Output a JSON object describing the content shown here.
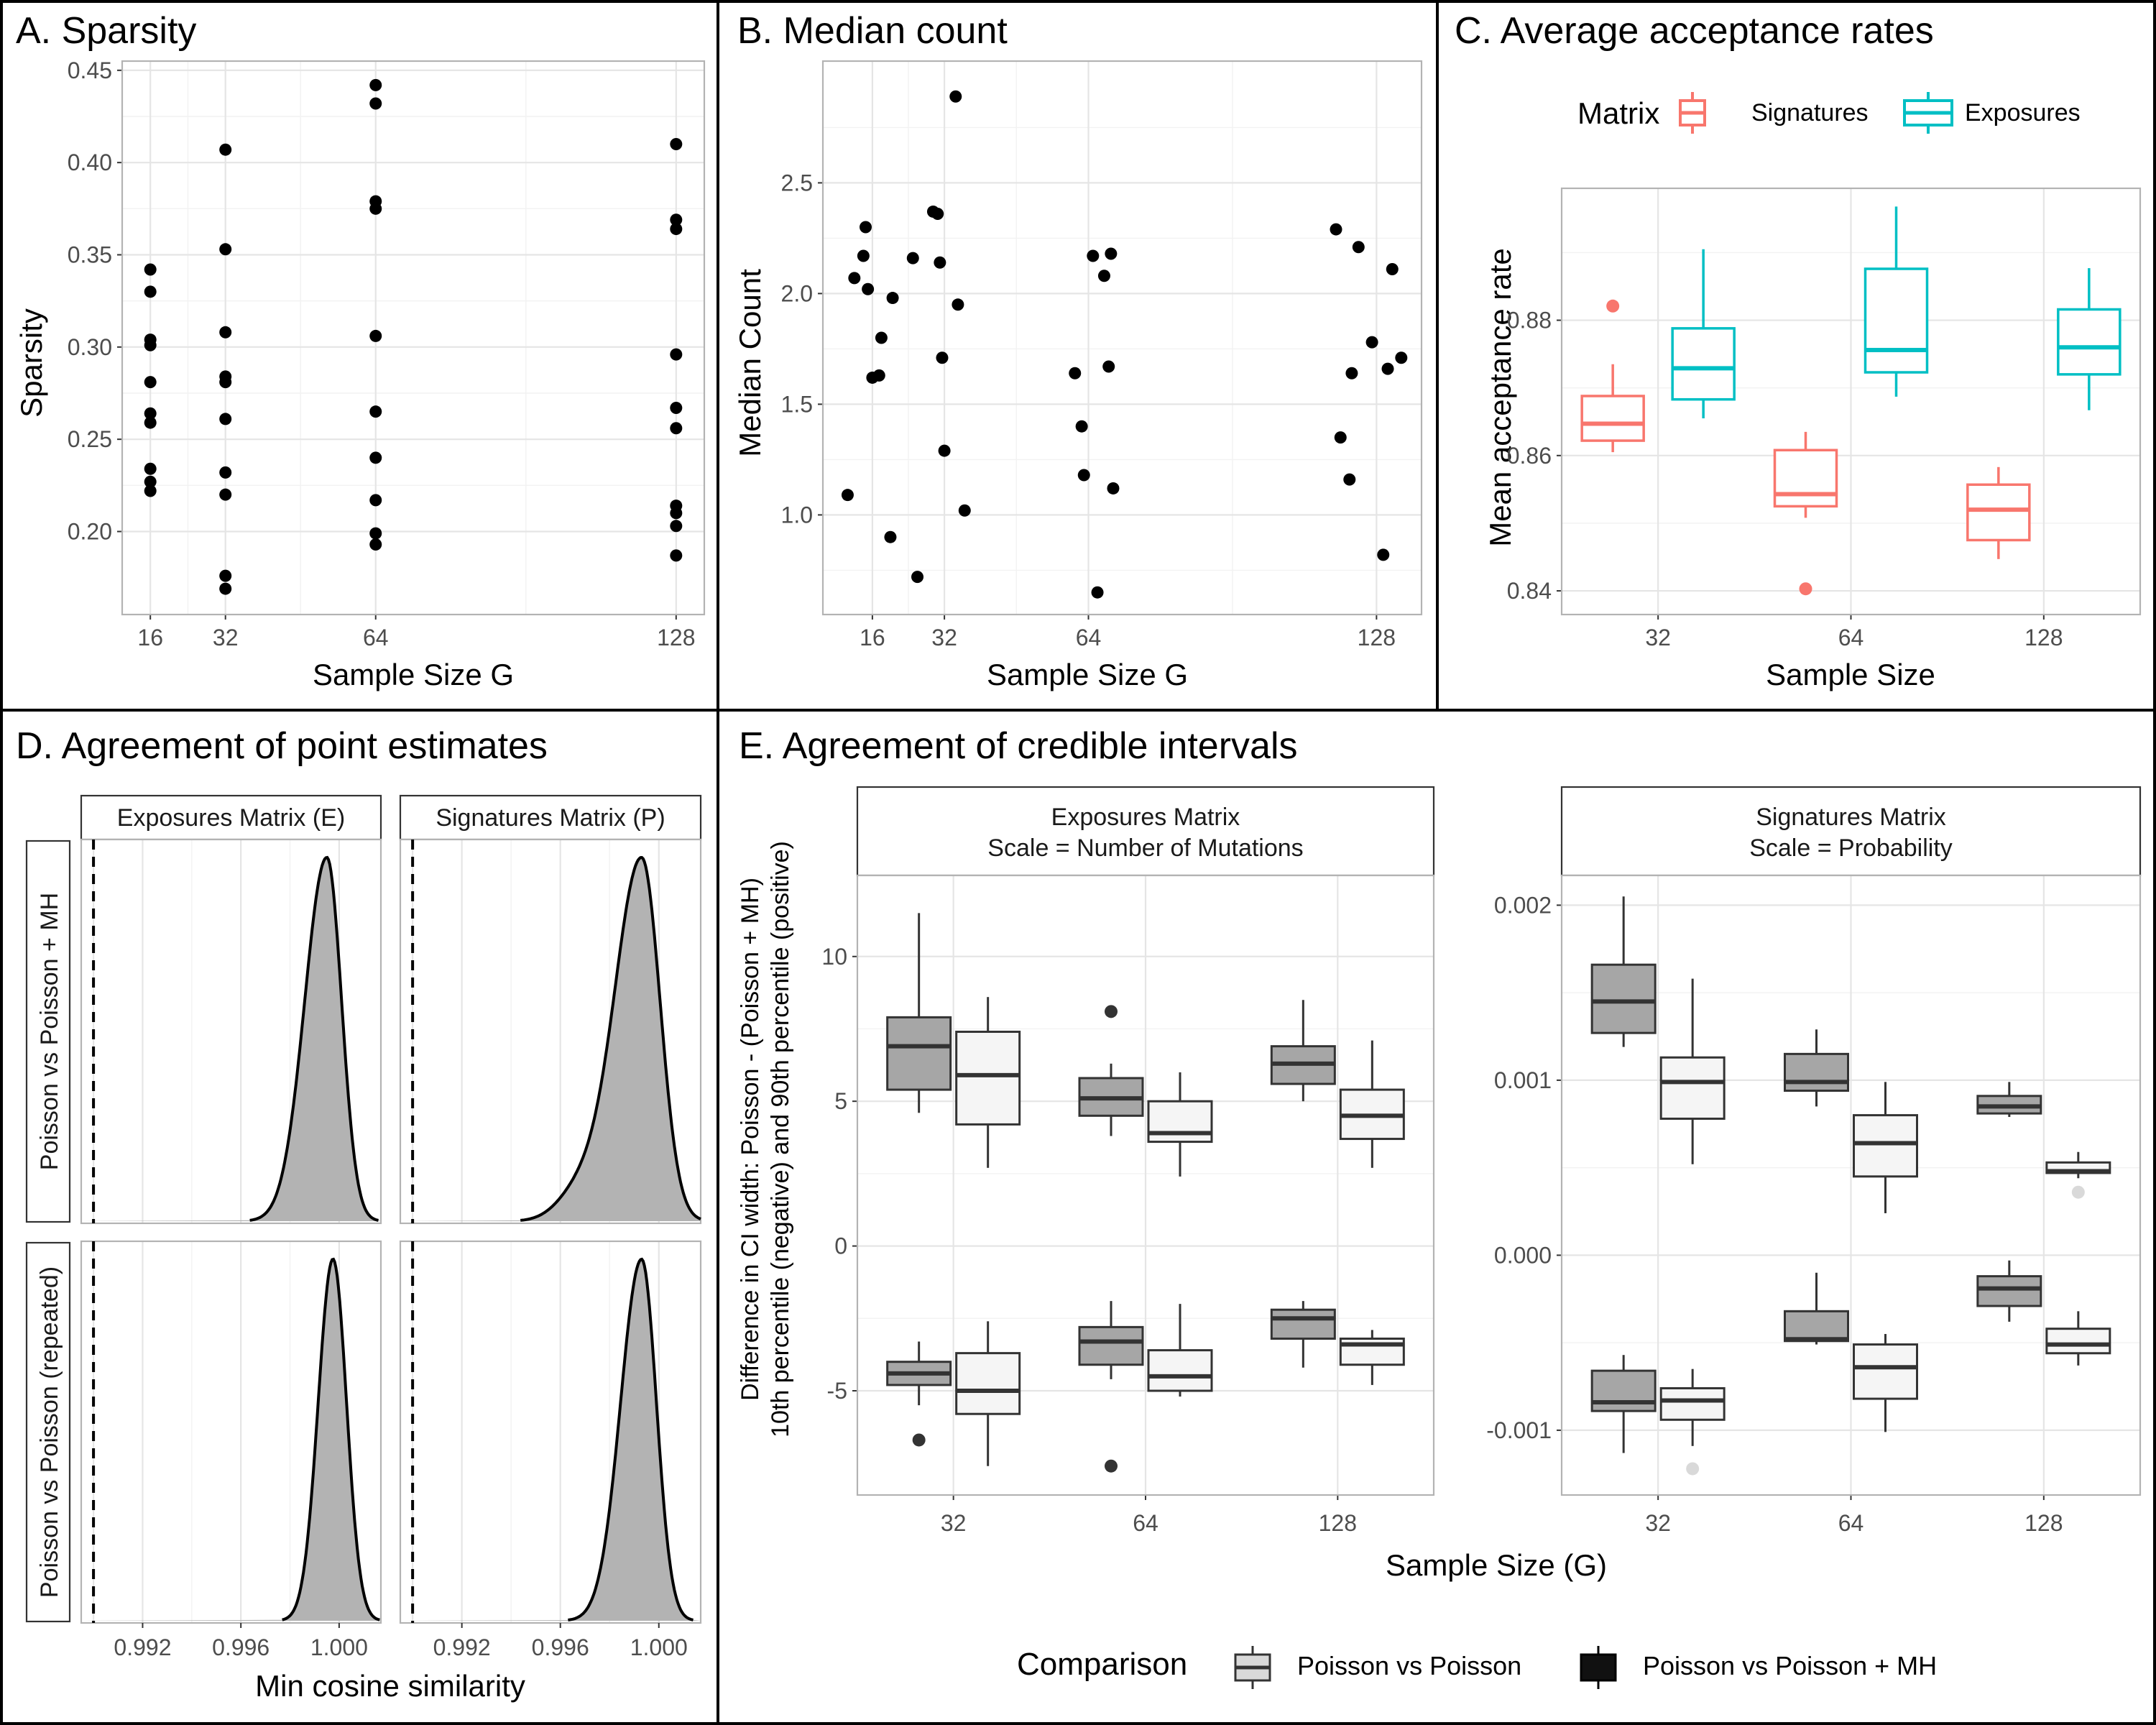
{
  "panels": {
    "A": {
      "chart_data": {
        "type": "scatter",
        "title": "A. Sparsity",
        "xlabel": "Sample Size G",
        "ylabel": "Sparsity",
        "xlim": [
          10,
          134
        ],
        "ylim": [
          0.155,
          0.455
        ],
        "x_ticks": [
          16,
          32,
          64,
          128
        ],
        "y_ticks": [
          0.2,
          0.25,
          0.3,
          0.35,
          0.4,
          0.45
        ],
        "series": [
          {
            "x": 16,
            "values": [
              0.342,
              0.33,
              0.304,
              0.301,
              0.281,
              0.264,
              0.259,
              0.234,
              0.227,
              0.222
            ]
          },
          {
            "x": 32,
            "values": [
              0.407,
              0.353,
              0.308,
              0.284,
              0.281,
              0.261,
              0.232,
              0.22,
              0.176,
              0.169
            ]
          },
          {
            "x": 64,
            "values": [
              0.442,
              0.432,
              0.379,
              0.375,
              0.306,
              0.265,
              0.24,
              0.217,
              0.199,
              0.193
            ]
          },
          {
            "x": 128,
            "values": [
              0.41,
              0.369,
              0.364,
              0.296,
              0.267,
              0.256,
              0.214,
              0.21,
              0.203,
              0.187
            ]
          }
        ]
      }
    },
    "B": {
      "chart_data": {
        "type": "scatter",
        "title": "B. Median count",
        "xlabel": "Sample Size G",
        "ylabel": "Median Count",
        "xlim": [
          5,
          138
        ],
        "ylim": [
          0.55,
          3.05
        ],
        "x_ticks": [
          16,
          32,
          64,
          128
        ],
        "y_ticks": [
          1.0,
          1.5,
          2.0,
          2.5
        ],
        "points": [
          [
            10.5,
            1.09
          ],
          [
            12,
            2.07
          ],
          [
            14,
            2.17
          ],
          [
            14.5,
            2.3
          ],
          [
            15,
            2.02
          ],
          [
            16,
            1.62
          ],
          [
            17.5,
            1.63
          ],
          [
            18,
            1.8
          ],
          [
            20,
            0.9
          ],
          [
            20.5,
            1.98
          ],
          [
            25,
            2.16
          ],
          [
            26,
            0.72
          ],
          [
            29.5,
            2.37
          ],
          [
            30.5,
            2.36
          ],
          [
            31,
            2.14
          ],
          [
            31.5,
            1.71
          ],
          [
            32,
            1.29
          ],
          [
            34.5,
            2.89
          ],
          [
            35,
            1.95
          ],
          [
            36.5,
            1.02
          ],
          [
            61,
            1.64
          ],
          [
            62.5,
            1.4
          ],
          [
            63,
            1.18
          ],
          [
            65,
            2.17
          ],
          [
            66,
            0.65
          ],
          [
            67.5,
            2.08
          ],
          [
            68.5,
            1.67
          ],
          [
            69,
            2.18
          ],
          [
            69.5,
            1.12
          ],
          [
            119,
            2.29
          ],
          [
            120,
            1.35
          ],
          [
            122,
            1.16
          ],
          [
            122.5,
            1.64
          ],
          [
            124,
            2.21
          ],
          [
            127,
            1.78
          ],
          [
            129.5,
            0.82
          ],
          [
            130.5,
            1.66
          ],
          [
            131.5,
            2.11
          ],
          [
            133.5,
            1.71
          ]
        ]
      }
    },
    "C": {
      "chart_data": {
        "type": "box",
        "title": "C. Average acceptance rates",
        "xlabel": "Sample Size",
        "ylabel": "Mean acceptance rate",
        "categories": [
          "32",
          "64",
          "128"
        ],
        "ylim": [
          0.8365,
          0.8995
        ],
        "y_ticks": [
          0.84,
          0.86,
          0.88
        ],
        "y_tick_labels": [
          "0.84",
          "0.86",
          "0.88"
        ],
        "legend": {
          "title": "Matrix",
          "items": [
            "Signatures",
            "Exposures"
          ]
        },
        "series": [
          {
            "name": "Signatures",
            "color": "#F8766D",
            "boxes": [
              {
                "lo": 0.8605,
                "q1": 0.8622,
                "med": 0.8647,
                "q3": 0.8688,
                "hi": 0.8735,
                "outliers": [
                  0.8821
                ]
              },
              {
                "lo": 0.8508,
                "q1": 0.8525,
                "med": 0.8543,
                "q3": 0.8608,
                "hi": 0.8635,
                "outliers": [
                  0.8403
                ]
              },
              {
                "lo": 0.8447,
                "q1": 0.8475,
                "med": 0.852,
                "q3": 0.8557,
                "hi": 0.8583,
                "outliers": []
              }
            ]
          },
          {
            "name": "Exposures",
            "color": "#00BFC4",
            "boxes": [
              {
                "lo": 0.8655,
                "q1": 0.8683,
                "med": 0.8729,
                "q3": 0.8788,
                "hi": 0.8905,
                "outliers": []
              },
              {
                "lo": 0.8687,
                "q1": 0.8723,
                "med": 0.8756,
                "q3": 0.8876,
                "hi": 0.8968,
                "outliers": []
              },
              {
                "lo": 0.8667,
                "q1": 0.872,
                "med": 0.876,
                "q3": 0.8816,
                "hi": 0.8877,
                "outliers": []
              }
            ]
          }
        ]
      }
    },
    "D": {
      "chart_data": {
        "type": "density",
        "title": "D. Agreement of point estimates",
        "xlabel": "Min cosine similarity",
        "xlim": [
          0.9895,
          1.0017
        ],
        "x_ticks": [
          0.992,
          0.996,
          1.0
        ],
        "x_tick_labels": [
          "0.992",
          "0.996",
          "1.000"
        ],
        "reference_line": 0.99,
        "col_strips": [
          "Exposures Matrix (E)",
          "Signatures Matrix (P)"
        ],
        "row_strips": [
          "Poisson vs Poisson + MH",
          "Poisson vs Poisson (repeated)"
        ],
        "cells": [
          {
            "row": 0,
            "col": 0,
            "mode": 0.9995,
            "sd_left": 0.0009,
            "sd_right": 0.0006
          },
          {
            "row": 0,
            "col": 1,
            "mode": 0.9993,
            "sd_left": 0.0011,
            "sd_right": 0.00075,
            "shoulder": {
              "center": 0.9968,
              "sd": 0.0009,
              "weight": 0.08
            }
          },
          {
            "row": 1,
            "col": 0,
            "mode": 0.99975,
            "sd_left": 0.0006,
            "sd_right": 0.00055
          },
          {
            "row": 1,
            "col": 1,
            "mode": 0.9993,
            "sd_left": 0.00085,
            "sd_right": 0.0006
          }
        ]
      }
    },
    "E": {
      "chart_data": {
        "type": "box",
        "title": "E. Agreement of credible intervals",
        "xlabel": "Sample Size (G)",
        "ylabel_lines": [
          "Difference in CI width: Poisson - (Poisson + MH)",
          "10th percentile (negative) and 90th percentile (positive)"
        ],
        "categories": [
          "32",
          "64",
          "128"
        ],
        "legend": {
          "title": "Comparison",
          "items": [
            "Poisson vs Poisson",
            "Poisson vs Poisson + MH"
          ]
        },
        "facets": [
          {
            "strip": [
              "Exposures Matrix",
              "Scale = Number of Mutations"
            ],
            "ylim": [
              -8.6,
              12.8
            ],
            "y_ticks": [
              -5,
              0,
              5,
              10
            ],
            "y_tick_labels": [
              "-5",
              "0",
              "5",
              "10"
            ],
            "groups": [
              {
                "dark": {
                  "lo": 4.6,
                  "q1": 5.4,
                  "med": 6.9,
                  "q3": 7.9,
                  "hi": 11.5,
                  "outliers": []
                },
                "light": {
                  "lo": 2.7,
                  "q1": 4.2,
                  "med": 5.9,
                  "q3": 7.4,
                  "hi": 8.6,
                  "outliers": []
                }
              },
              {
                "dark": {
                  "lo": 3.8,
                  "q1": 4.5,
                  "med": 5.1,
                  "q3": 5.8,
                  "hi": 6.3,
                  "outliers": [
                    8.1
                  ]
                },
                "light": {
                  "lo": 2.4,
                  "q1": 3.6,
                  "med": 3.9,
                  "q3": 5.0,
                  "hi": 6.0,
                  "outliers": []
                }
              },
              {
                "dark": {
                  "lo": 5.0,
                  "q1": 5.6,
                  "med": 6.3,
                  "q3": 6.9,
                  "hi": 8.5,
                  "outliers": []
                },
                "light": {
                  "lo": 2.7,
                  "q1": 3.7,
                  "med": 4.5,
                  "q3": 5.4,
                  "hi": 7.1,
                  "outliers": []
                }
              },
              {
                "dark": {
                  "lo": -5.5,
                  "q1": -4.8,
                  "med": -4.4,
                  "q3": -4.0,
                  "hi": -3.3,
                  "outliers": [
                    -6.7
                  ]
                },
                "light": {
                  "lo": -7.6,
                  "q1": -5.8,
                  "med": -5.0,
                  "q3": -3.7,
                  "hi": -2.6,
                  "outliers": []
                }
              },
              {
                "dark": {
                  "lo": -4.6,
                  "q1": -4.1,
                  "med": -3.3,
                  "q3": -2.8,
                  "hi": -1.9,
                  "outliers": [
                    -7.6
                  ]
                },
                "light": {
                  "lo": -5.2,
                  "q1": -5.0,
                  "med": -4.5,
                  "q3": -3.6,
                  "hi": -2.0,
                  "outliers": []
                }
              },
              {
                "dark": {
                  "lo": -4.2,
                  "q1": -3.2,
                  "med": -2.5,
                  "q3": -2.2,
                  "hi": -1.9,
                  "outliers": []
                },
                "light": {
                  "lo": -4.8,
                  "q1": -4.1,
                  "med": -3.4,
                  "q3": -3.2,
                  "hi": -2.9,
                  "outliers": []
                }
              }
            ]
          },
          {
            "strip": [
              "Signatures Matrix",
              "Scale = Probability"
            ],
            "ylim": [
              -0.00137,
              0.00217
            ],
            "y_ticks": [
              -0.001,
              0.0,
              0.001,
              0.002
            ],
            "y_tick_labels": [
              "-0.001",
              "0.000",
              "0.001",
              "0.002"
            ],
            "groups": [
              {
                "dark": {
                  "lo": 0.00119,
                  "q1": 0.00127,
                  "med": 0.00145,
                  "q3": 0.00166,
                  "hi": 0.00205,
                  "outliers": []
                },
                "light": {
                  "lo": 0.00052,
                  "q1": 0.00078,
                  "med": 0.00099,
                  "q3": 0.00113,
                  "hi": 0.00158,
                  "outliers": []
                }
              },
              {
                "dark": {
                  "lo": 0.00085,
                  "q1": 0.00094,
                  "med": 0.00099,
                  "q3": 0.00115,
                  "hi": 0.00129,
                  "outliers": []
                },
                "light": {
                  "lo": 0.00024,
                  "q1": 0.00045,
                  "med": 0.00064,
                  "q3": 0.0008,
                  "hi": 0.00099,
                  "outliers": []
                }
              },
              {
                "dark": {
                  "lo": 0.00079,
                  "q1": 0.00081,
                  "med": 0.00085,
                  "q3": 0.00091,
                  "hi": 0.00099,
                  "outliers": []
                },
                "light": {
                  "lo": 0.00044,
                  "q1": 0.00047,
                  "med": 0.00048,
                  "q3": 0.00053,
                  "hi": 0.00059,
                  "outliers": [
                    0.00036
                  ]
                }
              },
              {
                "dark": {
                  "lo": -0.00113,
                  "q1": -0.00089,
                  "med": -0.00084,
                  "q3": -0.00066,
                  "hi": -0.00057,
                  "outliers": []
                },
                "light": {
                  "lo": -0.00109,
                  "q1": -0.00094,
                  "med": -0.00083,
                  "q3": -0.00076,
                  "hi": -0.00065,
                  "outliers": [
                    -0.00122
                  ]
                }
              },
              {
                "dark": {
                  "lo": -0.00051,
                  "q1": -0.00049,
                  "med": -0.00048,
                  "q3": -0.00032,
                  "hi": -0.0001,
                  "outliers": []
                },
                "light": {
                  "lo": -0.00101,
                  "q1": -0.00082,
                  "med": -0.00064,
                  "q3": -0.00051,
                  "hi": -0.00045,
                  "outliers": []
                }
              },
              {
                "dark": {
                  "lo": -0.00038,
                  "q1": -0.00029,
                  "med": -0.00019,
                  "q3": -0.00012,
                  "hi": -3e-05,
                  "outliers": []
                },
                "light": {
                  "lo": -0.00063,
                  "q1": -0.00056,
                  "med": -0.00051,
                  "q3": -0.00042,
                  "hi": -0.00032,
                  "outliers": []
                }
              }
            ]
          }
        ]
      }
    }
  }
}
